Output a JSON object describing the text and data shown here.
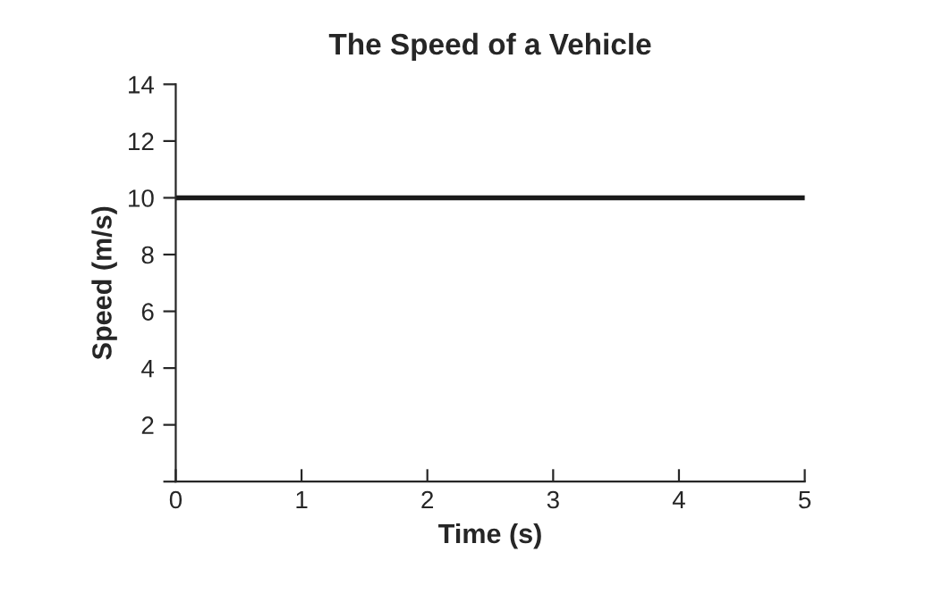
{
  "chart_data": {
    "type": "line",
    "title": "The Speed of a Vehicle",
    "xlabel": "Time (s)",
    "ylabel": "Speed (m/s)",
    "x": [
      0,
      5
    ],
    "series": [
      {
        "color": "#1a1a1a",
        "values": [
          10,
          10
        ]
      }
    ],
    "xlim": [
      0,
      5
    ],
    "xticks": [
      0,
      1,
      2,
      3,
      4,
      5
    ],
    "ylim": [
      0,
      14
    ],
    "yticks": [
      {
        "value": 0,
        "label": null
      },
      2,
      4,
      6,
      8,
      10,
      12,
      14
    ],
    "grid": false,
    "legend": false
  }
}
